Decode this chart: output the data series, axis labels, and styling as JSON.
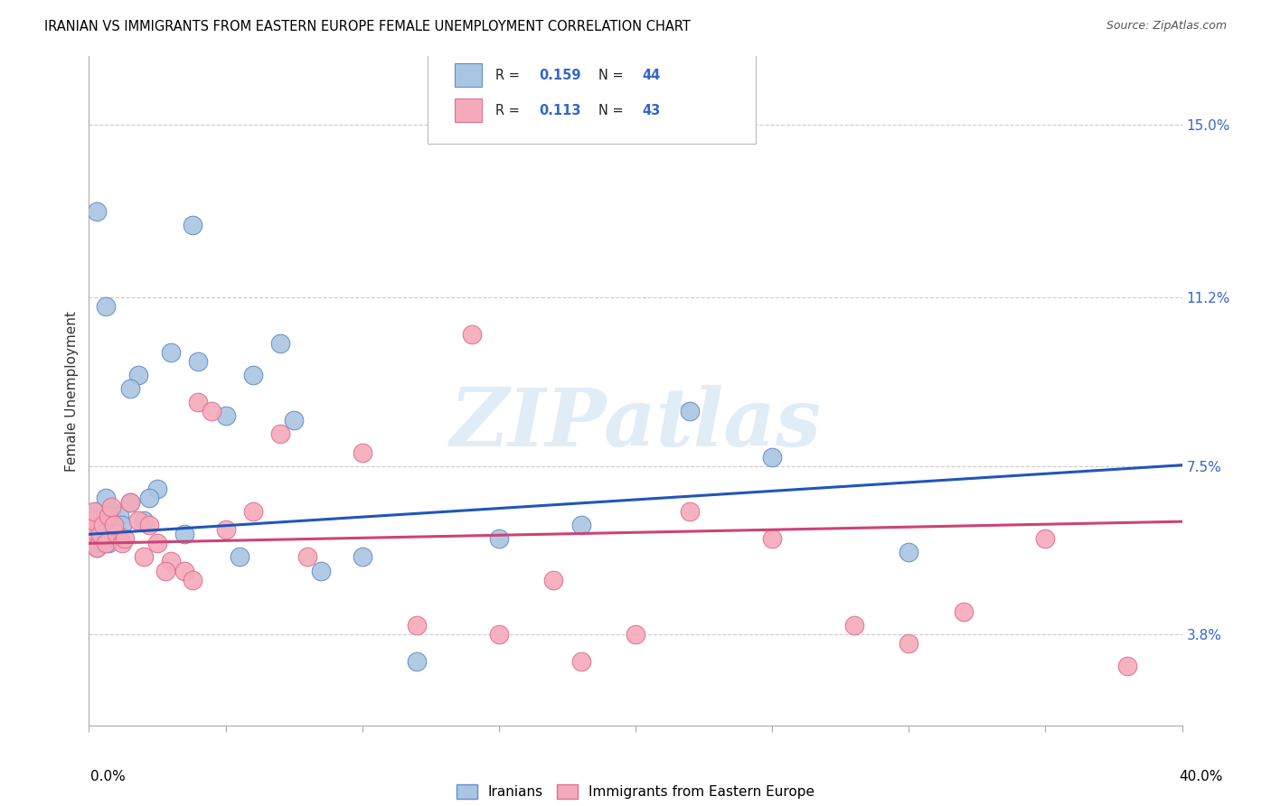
{
  "title": "IRANIAN VS IMMIGRANTS FROM EASTERN EUROPE FEMALE UNEMPLOYMENT CORRELATION CHART",
  "source": "Source: ZipAtlas.com",
  "ylabel": "Female Unemployment",
  "yticks": [
    3.8,
    7.5,
    11.2,
    15.0
  ],
  "xlim": [
    0.0,
    40.0
  ],
  "ylim": [
    1.8,
    16.5
  ],
  "watermark": "ZIPatlas",
  "blue_color": "#aac5e2",
  "pink_color": "#f5aabb",
  "blue_edge": "#6090c8",
  "pink_edge": "#e07090",
  "blue_line_color": "#2255bb",
  "pink_line_color": "#cc4477",
  "legend_R1": "0.159",
  "legend_N1": "44",
  "legend_R2": "0.113",
  "legend_N2": "43",
  "legend_label1": "Iranians",
  "legend_label2": "Immigrants from Eastern Europe",
  "iranians_x": [
    0.05,
    0.08,
    0.1,
    0.12,
    0.15,
    0.18,
    0.2,
    0.25,
    0.3,
    0.35,
    0.4,
    0.5,
    0.6,
    0.7,
    0.8,
    0.9,
    1.0,
    1.1,
    1.2,
    1.5,
    1.8,
    2.0,
    2.5,
    3.0,
    3.5,
    4.0,
    5.0,
    6.0,
    7.5,
    10.0,
    12.0,
    15.0,
    18.0,
    22.0,
    25.0,
    30.0,
    7.0,
    3.8,
    5.5,
    8.5,
    0.3,
    0.6,
    1.5,
    2.2
  ],
  "iranians_y": [
    6.2,
    6.0,
    5.8,
    6.3,
    5.9,
    6.1,
    6.4,
    6.5,
    5.7,
    6.2,
    6.0,
    6.3,
    6.8,
    5.8,
    6.5,
    6.1,
    5.9,
    6.4,
    6.2,
    6.7,
    9.5,
    6.3,
    7.0,
    10.0,
    6.0,
    9.8,
    8.6,
    9.5,
    8.5,
    5.5,
    3.2,
    5.9,
    6.2,
    8.7,
    7.7,
    5.6,
    10.2,
    12.8,
    5.5,
    5.2,
    13.1,
    11.0,
    9.2,
    6.8
  ],
  "eastern_europe_x": [
    0.05,
    0.1,
    0.15,
    0.2,
    0.3,
    0.4,
    0.5,
    0.6,
    0.7,
    0.8,
    1.0,
    1.2,
    1.5,
    1.8,
    2.0,
    2.2,
    2.5,
    3.0,
    3.5,
    4.0,
    4.5,
    5.0,
    6.0,
    7.0,
    8.0,
    10.0,
    12.0,
    15.0,
    17.0,
    18.0,
    20.0,
    22.0,
    25.0,
    28.0,
    30.0,
    32.0,
    35.0,
    38.0,
    1.3,
    2.8,
    0.9,
    3.8,
    14.0
  ],
  "eastern_europe_y": [
    5.9,
    6.1,
    6.3,
    6.5,
    5.7,
    6.0,
    6.2,
    5.8,
    6.4,
    6.6,
    6.0,
    5.8,
    6.7,
    6.3,
    5.5,
    6.2,
    5.8,
    5.4,
    5.2,
    8.9,
    8.7,
    6.1,
    6.5,
    8.2,
    5.5,
    7.8,
    4.0,
    3.8,
    5.0,
    3.2,
    3.8,
    6.5,
    5.9,
    4.0,
    3.6,
    4.3,
    5.9,
    3.1,
    5.9,
    5.2,
    6.2,
    5.0,
    10.4
  ]
}
